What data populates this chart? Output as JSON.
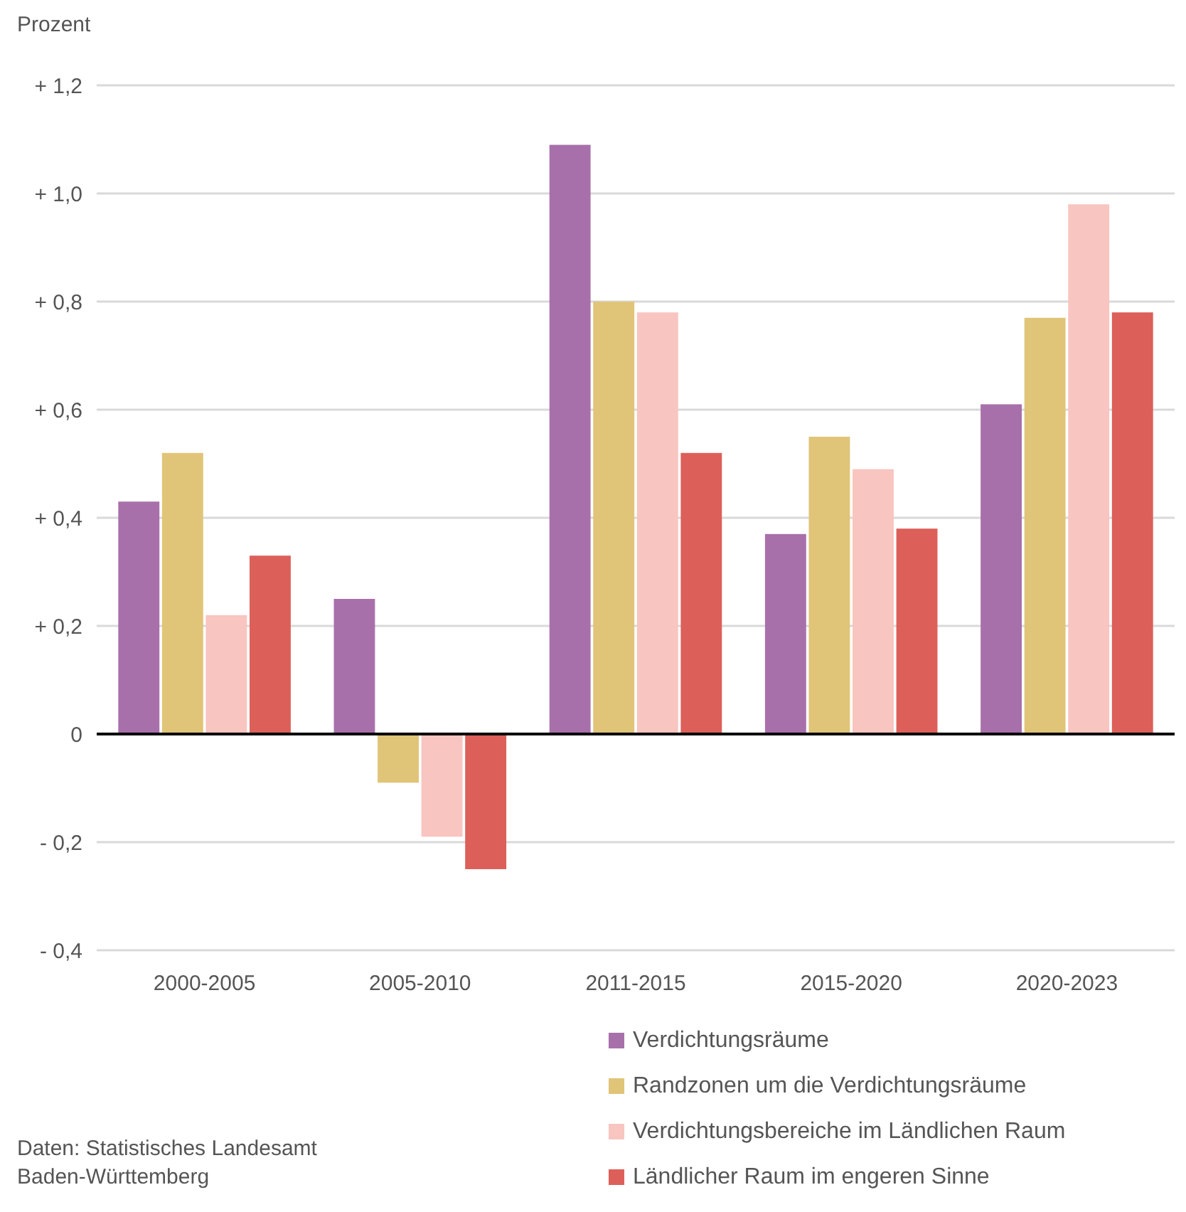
{
  "chart_data": {
    "type": "bar",
    "ylabel": "Prozent",
    "categories": [
      "2000-2005",
      "2005-2010",
      "2011-2015",
      "2015-2020",
      "2020-2023"
    ],
    "series": [
      {
        "name": "Verdichtungsräume",
        "color": "#a870aa",
        "values": [
          0.43,
          0.25,
          1.09,
          0.37,
          0.61
        ]
      },
      {
        "name": "Randzonen um die Verdichtungsräume",
        "color": "#e0c478",
        "values": [
          0.52,
          -0.09,
          0.8,
          0.55,
          0.77
        ]
      },
      {
        "name": "Verdichtungsbereiche im Ländlichen Raum",
        "color": "#f8c5c0",
        "values": [
          0.22,
          -0.19,
          0.78,
          0.49,
          0.98
        ]
      },
      {
        "name": "Ländlicher Raum im engeren Sinne",
        "color": "#dd5f59",
        "values": [
          0.33,
          -0.25,
          0.52,
          0.38,
          0.78
        ]
      }
    ],
    "ylim": [
      -0.4,
      1.2
    ],
    "yticks": [
      {
        "value": -0.4,
        "label": "- 0,4"
      },
      {
        "value": -0.2,
        "label": "- 0,2"
      },
      0,
      {
        "value": 0.2,
        "label": "+ 0,2"
      },
      {
        "value": 0.4,
        "label": "+ 0,4"
      },
      {
        "value": 0.6,
        "label": "+ 0,6"
      },
      {
        "value": 0.8,
        "label": "+ 0,8"
      },
      {
        "value": 1.0,
        "label": "+ 1,0"
      },
      {
        "value": 1.2,
        "label": "+ 1,2"
      }
    ],
    "grid": "y",
    "legend": "bottom right",
    "annotations": [
      "Daten: Statistisches Landesamt Baden-Württemberg"
    ]
  }
}
